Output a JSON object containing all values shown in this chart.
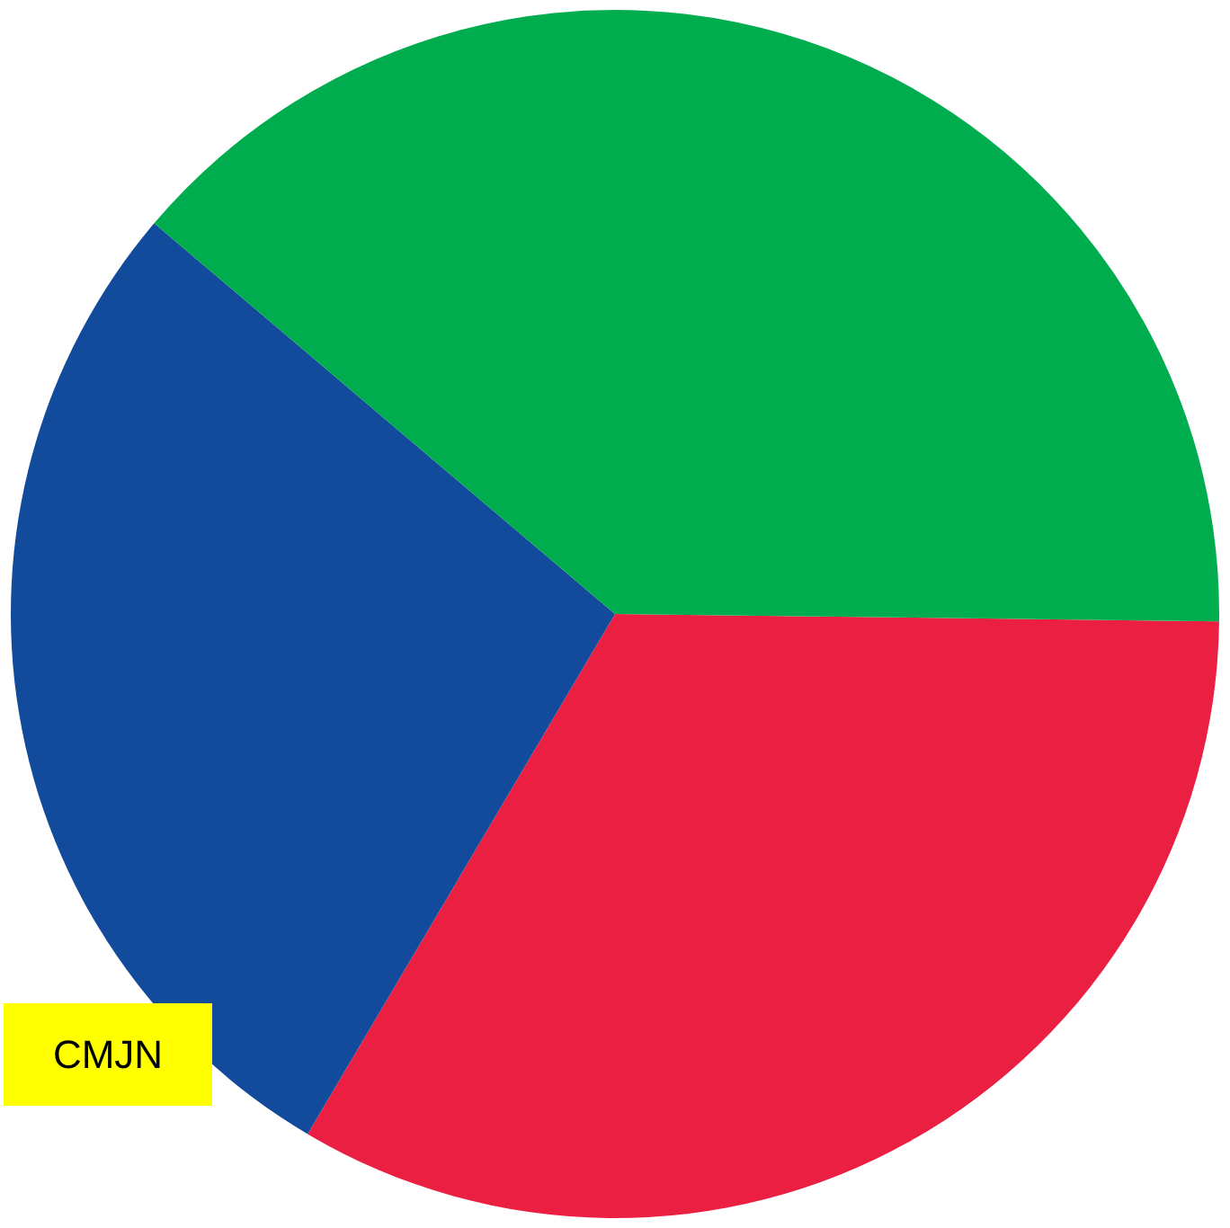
{
  "chart_data": {
    "type": "pie",
    "categories": [
      null,
      null,
      null
    ],
    "values": [
      33.3,
      27.7,
      39.0
    ],
    "colors": [
      "#ea1f42",
      "#124a9c",
      "#00ad4e"
    ],
    "annotations": [
      "CMJN"
    ]
  }
}
